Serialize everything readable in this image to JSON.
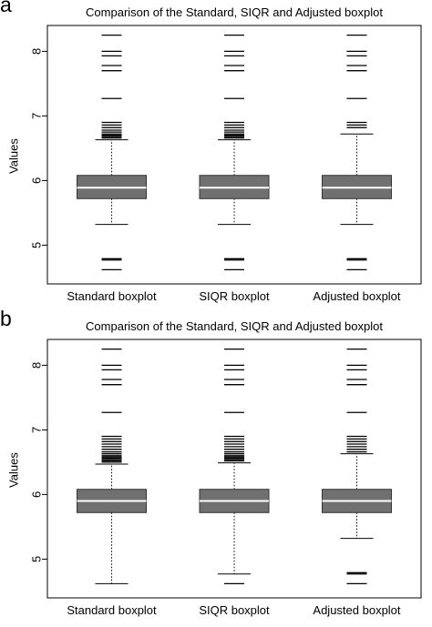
{
  "chart_data": [
    {
      "panel_label": "a",
      "type": "boxplot",
      "title": "Comparison of the Standard, SIQR and Adjusted boxplot",
      "ylabel": "Values",
      "xlabel": "",
      "ylim": [
        4.4,
        8.4
      ],
      "yticks": [
        5,
        6,
        7,
        8
      ],
      "categories": [
        "Standard boxplot",
        "SIQR boxplot",
        "Adjusted boxplot"
      ],
      "box_color": "#707070",
      "median_color": "#ffffff",
      "boxes": [
        {
          "name": "Standard boxplot",
          "whisker_low": 5.32,
          "q1": 5.72,
          "median": 5.89,
          "q3": 6.08,
          "whisker_high": 6.63,
          "outliers": [
            4.62,
            4.77,
            4.79,
            6.66,
            6.68,
            6.7,
            6.72,
            6.75,
            6.78,
            6.82,
            6.86,
            6.9,
            7.27,
            7.7,
            7.78,
            7.93,
            8.0,
            8.25
          ]
        },
        {
          "name": "SIQR boxplot",
          "whisker_low": 5.32,
          "q1": 5.72,
          "median": 5.89,
          "q3": 6.08,
          "whisker_high": 6.63,
          "outliers": [
            4.62,
            4.77,
            4.79,
            6.66,
            6.68,
            6.7,
            6.72,
            6.75,
            6.78,
            6.82,
            6.86,
            6.9,
            7.27,
            7.7,
            7.78,
            7.93,
            8.0,
            8.25
          ]
        },
        {
          "name": "Adjusted boxplot",
          "whisker_low": 5.32,
          "q1": 5.72,
          "median": 5.89,
          "q3": 6.08,
          "whisker_high": 6.72,
          "outliers": [
            4.62,
            4.77,
            4.79,
            6.82,
            6.86,
            6.9,
            7.27,
            7.7,
            7.78,
            7.93,
            8.0,
            8.25
          ]
        }
      ]
    },
    {
      "panel_label": "b",
      "type": "boxplot",
      "title": "Comparison of the Standard, SIQR and Adjusted boxplot",
      "ylabel": "Values",
      "xlabel": "",
      "ylim": [
        4.4,
        8.4
      ],
      "yticks": [
        5,
        6,
        7,
        8
      ],
      "categories": [
        "Standard boxplot",
        "SIQR boxplot",
        "Adjusted boxplot"
      ],
      "box_color": "#707070",
      "median_color": "#ffffff",
      "boxes": [
        {
          "name": "Standard boxplot",
          "whisker_low": 4.62,
          "q1": 5.72,
          "median": 5.9,
          "q3": 6.08,
          "whisker_high": 6.47,
          "outliers": [
            6.5,
            6.52,
            6.54,
            6.56,
            6.58,
            6.6,
            6.63,
            6.66,
            6.7,
            6.74,
            6.78,
            6.82,
            6.86,
            6.9,
            7.27,
            7.7,
            7.78,
            7.93,
            8.0,
            8.25
          ]
        },
        {
          "name": "SIQR boxplot",
          "whisker_low": 4.77,
          "q1": 5.72,
          "median": 5.9,
          "q3": 6.08,
          "whisker_high": 6.49,
          "outliers": [
            4.62,
            6.52,
            6.54,
            6.56,
            6.58,
            6.6,
            6.63,
            6.66,
            6.7,
            6.74,
            6.78,
            6.82,
            6.86,
            6.9,
            7.27,
            7.7,
            7.78,
            7.93,
            8.0,
            8.25
          ]
        },
        {
          "name": "Adjusted boxplot",
          "whisker_low": 5.32,
          "q1": 5.72,
          "median": 5.9,
          "q3": 6.08,
          "whisker_high": 6.63,
          "outliers": [
            4.62,
            4.77,
            4.79,
            6.66,
            6.7,
            6.74,
            6.78,
            6.82,
            6.86,
            6.9,
            7.27,
            7.7,
            7.78,
            7.93,
            8.0,
            8.25
          ]
        }
      ]
    }
  ]
}
